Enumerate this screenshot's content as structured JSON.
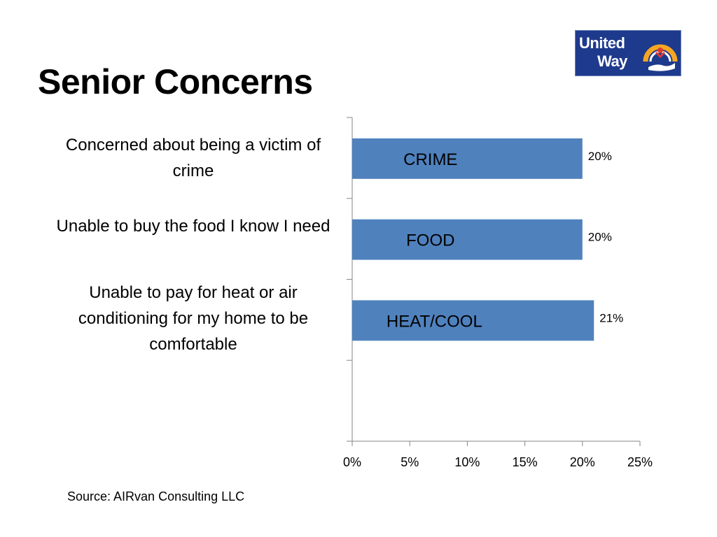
{
  "slide": {
    "title": "Senior Concerns",
    "source": "Source:  AIRvan Consulting LLC",
    "logo": {
      "line1": "United",
      "line2": "Way",
      "colors": {
        "background": "#1e3a8c",
        "arc": "#f5a623"
      }
    }
  },
  "chart_data": {
    "type": "bar",
    "orientation": "horizontal",
    "categories": [
      "Concerned about being a victim of crime",
      "Unable to buy the food I know I need",
      "Unable to pay for heat or air conditioning for my home to be comfortable"
    ],
    "bar_labels": [
      "CRIME",
      "FOOD",
      "HEAT/COOL"
    ],
    "values": [
      0.2,
      0.2,
      0.21
    ],
    "value_labels": [
      "20%",
      "20%",
      "21%"
    ],
    "xlim": [
      0,
      0.25
    ],
    "xticks": [
      0,
      0.05,
      0.1,
      0.15,
      0.2,
      0.25
    ],
    "xtick_labels": [
      "0%",
      "5%",
      "10%",
      "15%",
      "20%",
      "25%"
    ],
    "grid": false,
    "legend": "none",
    "bar_color": "#4f81bd"
  }
}
